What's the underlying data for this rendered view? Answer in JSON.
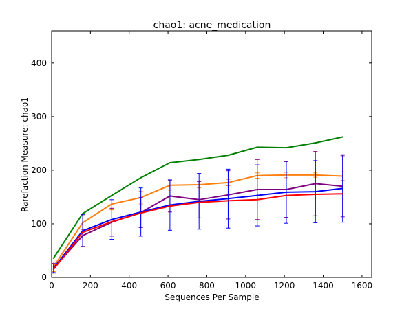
{
  "chart_data": {
    "type": "line",
    "title": "chao1: acne_medication",
    "xlabel": "Sequences Per Sample",
    "ylabel": "Rarefaction Measure: chao1",
    "xlim": [
      0,
      1650
    ],
    "ylim": [
      0,
      460
    ],
    "xticks": [
      0,
      200,
      400,
      600,
      800,
      1000,
      1200,
      1400,
      1600
    ],
    "yticks": [
      0,
      100,
      200,
      300,
      400
    ],
    "grid": false,
    "legend": "none",
    "x": [
      10,
      160,
      310,
      460,
      610,
      760,
      910,
      1060,
      1210,
      1360,
      1500
    ],
    "series": [
      {
        "color": "#008000",
        "values": [
          36,
          119,
          153,
          186,
          214,
          220,
          228,
          243,
          242,
          251,
          262
        ]
      },
      {
        "color": "#ff7f0e",
        "values": [
          20,
          102,
          137,
          149,
          172,
          173,
          177,
          190,
          191,
          191,
          189
        ],
        "errors": [
          9,
          13,
          11,
          12,
          9,
          6,
          6,
          5,
          5,
          4,
          8
        ]
      },
      {
        "color": "#800080",
        "values": [
          17,
          78,
          103,
          121,
          152,
          145,
          154,
          164,
          164,
          175,
          170
        ],
        "errors": [
          9,
          20,
          26,
          28,
          30,
          34,
          45,
          56,
          52,
          60,
          57
        ]
      },
      {
        "color": "#0000ff",
        "values": [
          17,
          87,
          108,
          122,
          135,
          142,
          147,
          153,
          159,
          160,
          166
        ],
        "errors": [
          8,
          30,
          37,
          45,
          47,
          52,
          55,
          57,
          58,
          58,
          63
        ]
      },
      {
        "color": "#ff0000",
        "values": [
          15,
          84,
          104,
          120,
          133,
          140,
          143,
          145,
          153,
          155,
          156
        ]
      }
    ]
  }
}
